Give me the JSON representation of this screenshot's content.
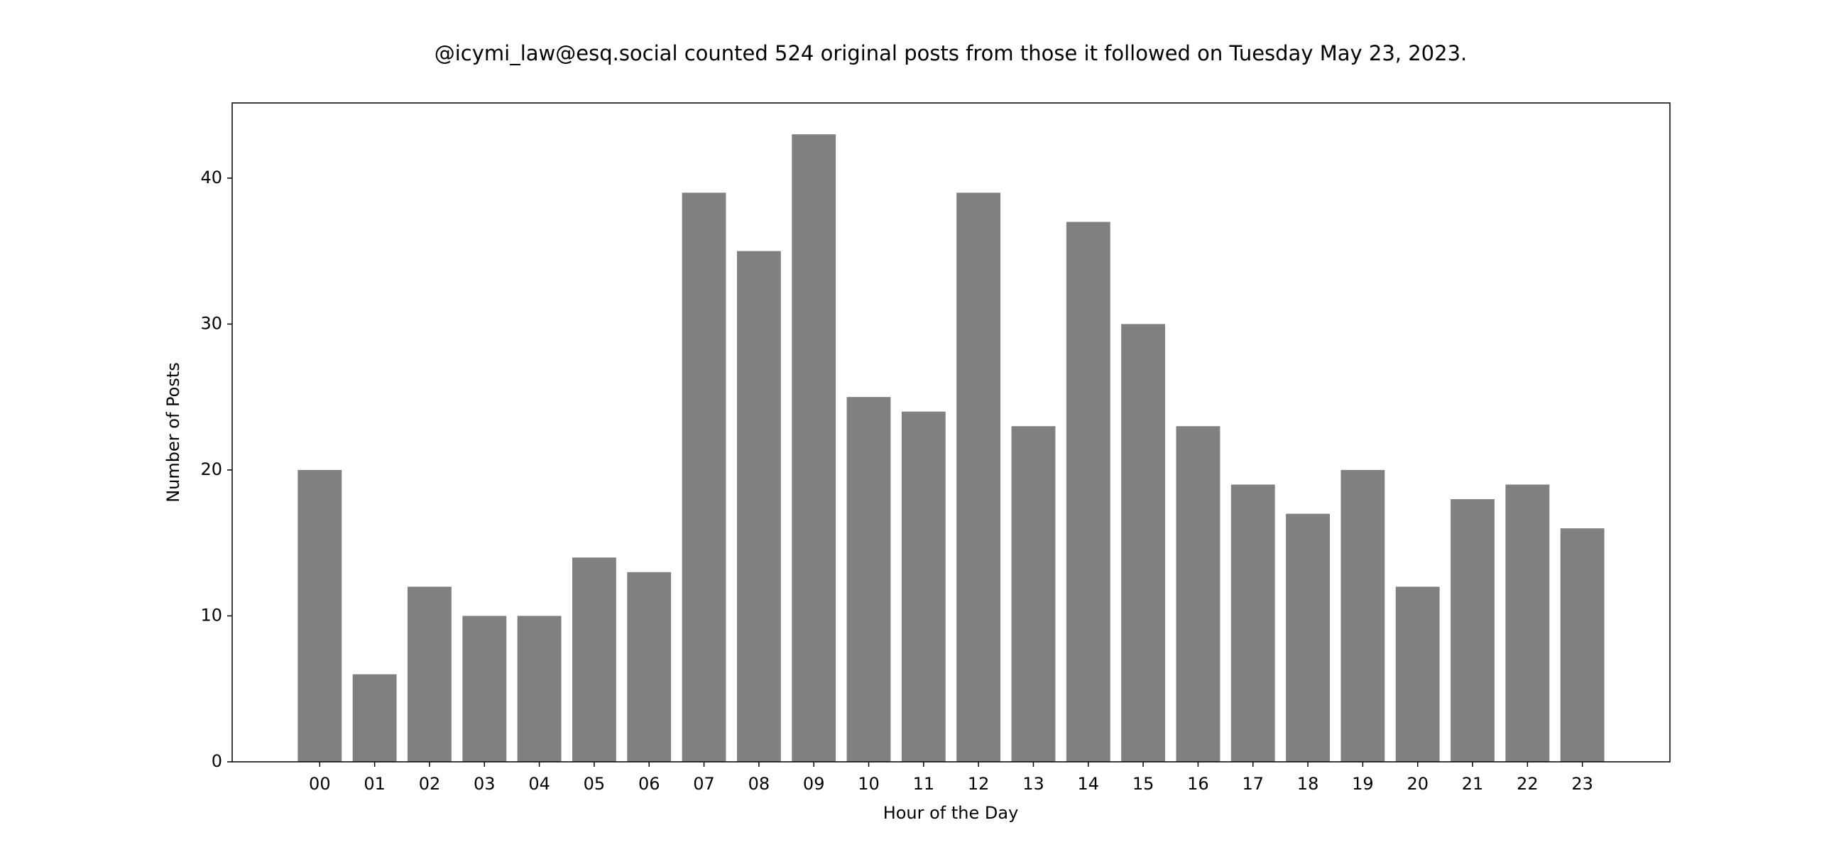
{
  "chart_data": {
    "type": "bar",
    "title": "@icymi_law@esq.social counted 524 original posts from those it followed on Tuesday May 23, 2023.",
    "x_label": "Hour of the Day",
    "y_label": "Number of Posts",
    "categories": [
      "00",
      "01",
      "02",
      "03",
      "04",
      "05",
      "06",
      "07",
      "08",
      "09",
      "10",
      "11",
      "12",
      "13",
      "14",
      "15",
      "16",
      "17",
      "18",
      "19",
      "20",
      "21",
      "22",
      "23"
    ],
    "values": [
      20,
      6,
      12,
      10,
      10,
      14,
      13,
      39,
      35,
      43,
      25,
      24,
      39,
      23,
      37,
      30,
      23,
      19,
      17,
      20,
      12,
      18,
      19,
      16
    ],
    "color": "#808080",
    "ylim": [
      0,
      45.15
    ],
    "yticks": [
      0,
      10,
      20,
      30,
      40
    ],
    "grid": false
  }
}
